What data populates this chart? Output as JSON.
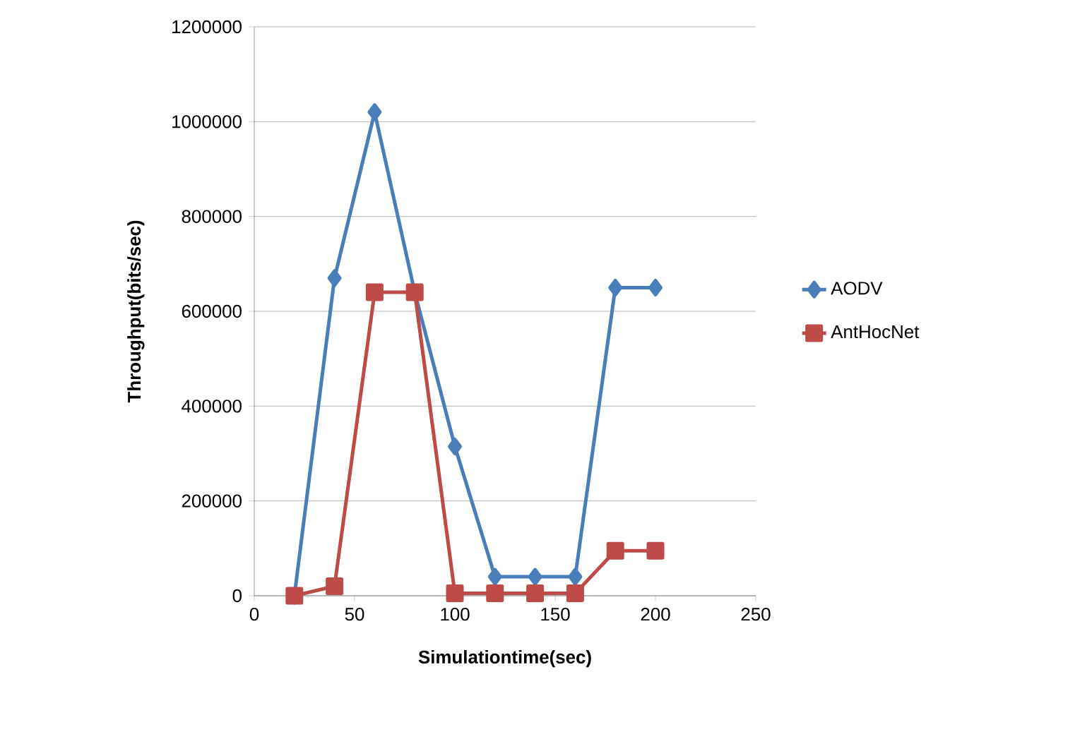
{
  "chart_data": {
    "type": "line",
    "xlabel": "Simulationtime(sec)",
    "ylabel": "Throughput(bits/sec)",
    "x": [
      20,
      40,
      60,
      80,
      100,
      120,
      140,
      160,
      180,
      200
    ],
    "series": [
      {
        "name": "AODV",
        "color": "#4a7ebb",
        "marker": "diamond",
        "values": [
          0,
          670000,
          1020000,
          640000,
          315000,
          40000,
          40000,
          40000,
          650000,
          650000
        ]
      },
      {
        "name": "AntHocNet",
        "color": "#be4b48",
        "marker": "square",
        "values": [
          0,
          20000,
          640000,
          640000,
          5000,
          5000,
          5000,
          5000,
          95000,
          95000
        ]
      }
    ],
    "xlim": [
      0,
      250
    ],
    "xticks": [
      0,
      50,
      100,
      150,
      200,
      250
    ],
    "ylim": [
      0,
      1200000
    ],
    "yticks": [
      0,
      200000,
      400000,
      600000,
      800000,
      1000000,
      1200000
    ],
    "grid": "y",
    "legend": "right",
    "line_style": "solid"
  }
}
